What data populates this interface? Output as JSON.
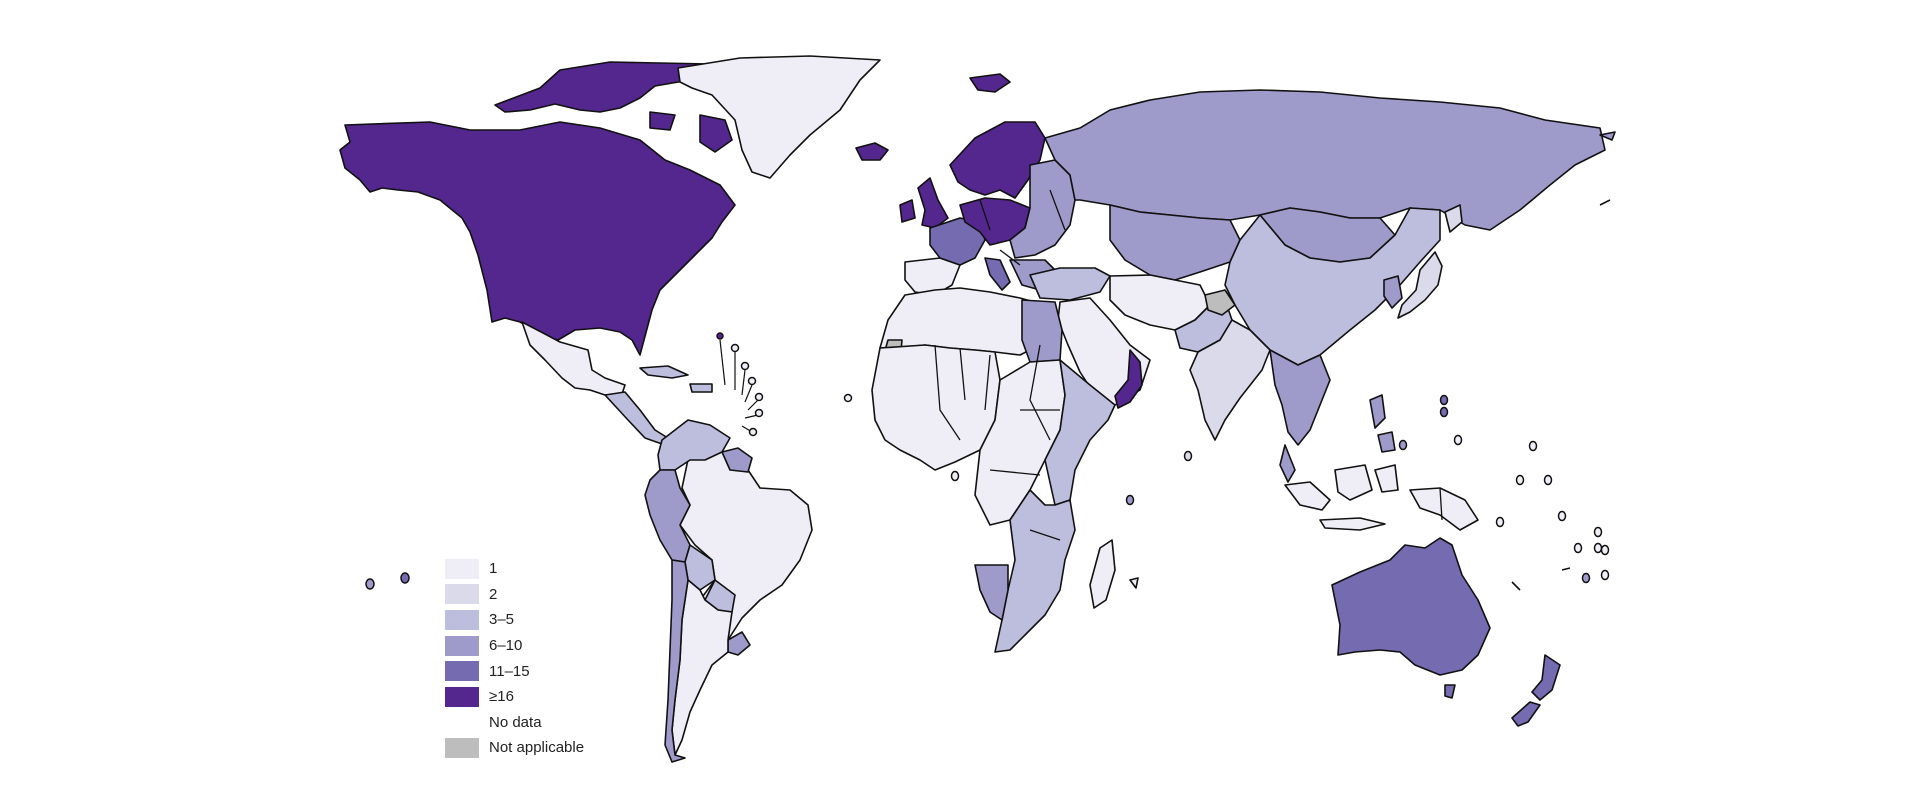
{
  "colors": {
    "c1": "#efeef6",
    "c2": "#dadaea",
    "c3": "#bdbddd",
    "c4": "#9e9aca",
    "c5": "#756bb1",
    "c6": "#54278f",
    "no_data": "#ffffff",
    "not_applicable": "#bdbdbd"
  },
  "legend": [
    {
      "label": "1",
      "color_key": "c1"
    },
    {
      "label": "2",
      "color_key": "c2"
    },
    {
      "label": "3–5",
      "color_key": "c3"
    },
    {
      "label": "6–10",
      "color_key": "c4"
    },
    {
      "label": "11–15",
      "color_key": "c5"
    },
    {
      "label": "≥16",
      "color_key": "c6"
    },
    {
      "label": "No data",
      "color_key": "no_data"
    },
    {
      "label": "Not applicable",
      "color_key": "not_applicable"
    }
  ],
  "regions": [
    {
      "name": "north-america",
      "class": "c6"
    },
    {
      "name": "canadian-arctic-islands",
      "class": "c6"
    },
    {
      "name": "greenland",
      "class": "c1"
    },
    {
      "name": "iceland",
      "class": "c6"
    },
    {
      "name": "svalbard",
      "class": "c6"
    },
    {
      "name": "mexico",
      "class": "c1"
    },
    {
      "name": "central-america",
      "class": "c3"
    },
    {
      "name": "caribbean-islands",
      "class": "c3"
    },
    {
      "name": "colombia-venezuela",
      "class": "c3"
    },
    {
      "name": "guianas",
      "class": "c4"
    },
    {
      "name": "brazil",
      "class": "c1"
    },
    {
      "name": "peru-ecuador",
      "class": "c4"
    },
    {
      "name": "bolivia",
      "class": "c3"
    },
    {
      "name": "paraguay",
      "class": "c3"
    },
    {
      "name": "uruguay",
      "class": "c4"
    },
    {
      "name": "argentina",
      "class": "c1"
    },
    {
      "name": "chile",
      "class": "c4"
    },
    {
      "name": "uk-ireland",
      "class": "c6"
    },
    {
      "name": "scandinavia",
      "class": "c6"
    },
    {
      "name": "western-europe",
      "class": "c5"
    },
    {
      "name": "central-europe",
      "class": "c6"
    },
    {
      "name": "iberia",
      "class": "c1"
    },
    {
      "name": "eastern-europe",
      "class": "c4"
    },
    {
      "name": "russia",
      "class": "c4"
    },
    {
      "name": "kazakhstan-central-asia",
      "class": "c4"
    },
    {
      "name": "mongolia",
      "class": "c4"
    },
    {
      "name": "china",
      "class": "c3"
    },
    {
      "name": "japan",
      "class": "c2"
    },
    {
      "name": "korea",
      "class": "c4"
    },
    {
      "name": "turkey-caucasus",
      "class": "c3"
    },
    {
      "name": "middle-east",
      "class": "c1"
    },
    {
      "name": "iran-afghanistan",
      "class": "c1"
    },
    {
      "name": "pakistan",
      "class": "c3"
    },
    {
      "name": "india",
      "class": "c2"
    },
    {
      "name": "kashmir",
      "class": "not_applicable"
    },
    {
      "name": "oman-yemen-coast",
      "class": "c6"
    },
    {
      "name": "southeast-asia",
      "class": "c4"
    },
    {
      "name": "indonesia",
      "class": "c1"
    },
    {
      "name": "philippines",
      "class": "c4"
    },
    {
      "name": "papua",
      "class": "c1"
    },
    {
      "name": "australia",
      "class": "c5"
    },
    {
      "name": "new-zealand",
      "class": "c5"
    },
    {
      "name": "north-africa",
      "class": "c1"
    },
    {
      "name": "western-sahara",
      "class": "not_applicable"
    },
    {
      "name": "egypt",
      "class": "c4"
    },
    {
      "name": "west-africa",
      "class": "c1"
    },
    {
      "name": "central-africa",
      "class": "c1"
    },
    {
      "name": "east-africa",
      "class": "c3"
    },
    {
      "name": "southern-africa",
      "class": "c3"
    },
    {
      "name": "namibia",
      "class": "c4"
    },
    {
      "name": "madagascar",
      "class": "c1"
    }
  ]
}
